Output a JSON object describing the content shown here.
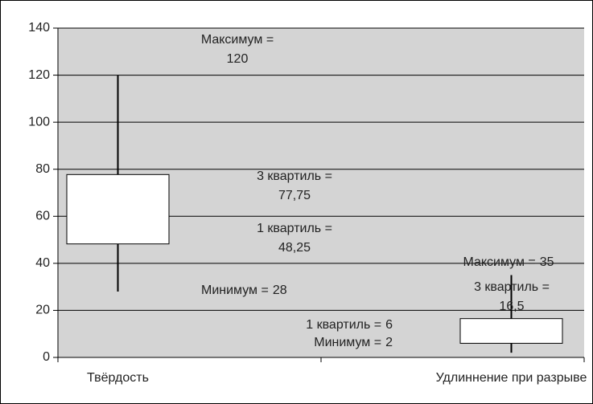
{
  "chart_data": {
    "type": "box",
    "categories": [
      "Твёрдость",
      "Удлиннение при разрыве"
    ],
    "label_names": {
      "min": "Минимум =",
      "q1": "1 квартиль =",
      "q3": "3 квартиль =",
      "max": "Максимум ="
    },
    "boxes": [
      {
        "min": 28,
        "q1": 48.25,
        "q3": 77.75,
        "max": 120,
        "value_labels": {
          "min": "28",
          "q1": "48,25",
          "q3": "77,75",
          "max": "120"
        }
      },
      {
        "min": 2,
        "q1": 6,
        "q3": 16.5,
        "max": 35,
        "value_labels": {
          "min": "2",
          "q1": "6",
          "q3": "16,5",
          "max": "35"
        }
      }
    ],
    "box_color": "#ffffff",
    "plot_background": "#d4d4d4",
    "ylim": [
      0,
      140
    ],
    "yticks": [
      0,
      20,
      40,
      60,
      80,
      100,
      120,
      140
    ],
    "grid": true
  }
}
